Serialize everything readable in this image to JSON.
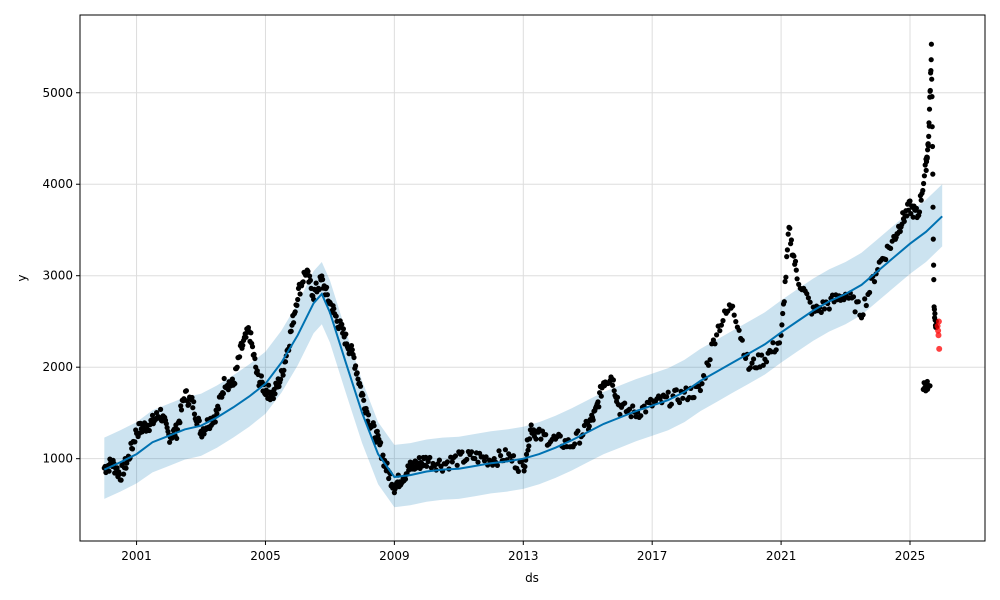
{
  "chart_data": {
    "type": "line",
    "title": "",
    "xlabel": "ds",
    "ylabel": "y",
    "xlim": [
      "1999-04-01",
      "2027-05-01"
    ],
    "ylim": [
      100,
      5850
    ],
    "grid": true,
    "x_ticks": [
      "2001",
      "2005",
      "2009",
      "2013",
      "2017",
      "2021",
      "2025"
    ],
    "y_ticks": [
      1000,
      2000,
      3000,
      4000,
      5000
    ],
    "colors": {
      "forecast_line": "#0072B2",
      "interval_fill": "#0072B2",
      "observed_points": "#000000",
      "test_points": "#ff0000",
      "grid": "#dddddd"
    },
    "series": [
      {
        "kind": "forecast",
        "x": [
          "2000-01-01",
          "2000-07-01",
          "2001-01-01",
          "2001-07-01",
          "2002-01-01",
          "2002-07-01",
          "2003-01-01",
          "2003-07-01",
          "2004-01-01",
          "2004-07-01",
          "2005-01-01",
          "2005-07-01",
          "2006-01-01",
          "2006-07-01",
          "2006-10-01",
          "2007-01-01",
          "2007-07-01",
          "2008-01-01",
          "2008-07-01",
          "2009-01-01",
          "2009-07-01",
          "2010-01-01",
          "2010-07-01",
          "2011-01-01",
          "2011-07-01",
          "2012-01-01",
          "2012-07-01",
          "2013-01-01",
          "2013-07-01",
          "2014-01-01",
          "2014-07-01",
          "2015-01-01",
          "2015-07-01",
          "2016-01-01",
          "2016-07-01",
          "2017-01-01",
          "2017-07-01",
          "2018-01-01",
          "2018-07-01",
          "2019-01-01",
          "2019-07-01",
          "2020-01-01",
          "2020-07-01",
          "2021-01-01",
          "2021-07-01",
          "2022-01-01",
          "2022-07-01",
          "2023-01-01",
          "2023-07-01",
          "2024-01-01",
          "2024-07-01",
          "2025-01-01",
          "2025-07-01",
          "2026-01-01"
        ],
        "yhat": [
          880,
          960,
          1050,
          1180,
          1250,
          1320,
          1360,
          1450,
          1560,
          1680,
          1820,
          2050,
          2350,
          2700,
          2800,
          2600,
          2050,
          1500,
          1050,
          800,
          820,
          860,
          880,
          890,
          920,
          950,
          970,
          1000,
          1050,
          1120,
          1200,
          1290,
          1380,
          1450,
          1520,
          1580,
          1640,
          1730,
          1850,
          1950,
          2050,
          2150,
          2250,
          2380,
          2500,
          2620,
          2720,
          2800,
          2900,
          3050,
          3200,
          3350,
          3480,
          3650
        ],
        "yhat_lower": [
          560,
          640,
          730,
          850,
          920,
          990,
          1030,
          1120,
          1230,
          1350,
          1490,
          1720,
          2020,
          2370,
          2470,
          2270,
          1720,
          1170,
          720,
          470,
          490,
          530,
          550,
          560,
          590,
          620,
          640,
          670,
          720,
          790,
          870,
          960,
          1050,
          1120,
          1190,
          1250,
          1310,
          1400,
          1520,
          1620,
          1720,
          1820,
          1920,
          2050,
          2170,
          2290,
          2390,
          2470,
          2570,
          2720,
          2870,
          3020,
          3150,
          3320
        ],
        "yhat_upper": [
          1230,
          1310,
          1400,
          1530,
          1600,
          1670,
          1710,
          1800,
          1910,
          2030,
          2170,
          2400,
          2700,
          3050,
          3150,
          2950,
          2400,
          1850,
          1400,
          1150,
          1170,
          1210,
          1230,
          1240,
          1270,
          1300,
          1320,
          1350,
          1400,
          1470,
          1550,
          1640,
          1730,
          1800,
          1870,
          1930,
          1990,
          2080,
          2200,
          2300,
          2400,
          2500,
          2600,
          2730,
          2850,
          2970,
          3070,
          3150,
          3250,
          3400,
          3550,
          3700,
          3830,
          4000
        ]
      },
      {
        "kind": "observed",
        "x": [
          "2000-01-01",
          "2000-04-01",
          "2000-07-01",
          "2000-10-01",
          "2001-01-01",
          "2001-04-01",
          "2001-07-01",
          "2001-10-01",
          "2002-01-01",
          "2002-04-01",
          "2002-07-01",
          "2002-10-01",
          "2003-01-01",
          "2003-04-01",
          "2003-07-01",
          "2003-10-01",
          "2004-01-01",
          "2004-04-01",
          "2004-07-01",
          "2004-10-01",
          "2005-01-01",
          "2005-04-01",
          "2005-07-01",
          "2005-10-01",
          "2006-01-01",
          "2006-04-01",
          "2006-07-01",
          "2006-10-01",
          "2007-01-01",
          "2007-04-01",
          "2007-07-01",
          "2007-10-01",
          "2008-01-01",
          "2008-04-01",
          "2008-07-01",
          "2008-10-01",
          "2009-01-01",
          "2009-04-01",
          "2009-07-01",
          "2009-10-01",
          "2010-01-01",
          "2010-07-01",
          "2011-01-01",
          "2011-07-01",
          "2012-01-01",
          "2012-07-01",
          "2013-01-01",
          "2013-04-01",
          "2013-07-01",
          "2014-01-01",
          "2014-07-01",
          "2015-01-01",
          "2015-04-01",
          "2015-07-01",
          "2015-10-01",
          "2016-01-01",
          "2016-07-01",
          "2017-01-01",
          "2017-07-01",
          "2018-01-01",
          "2018-07-01",
          "2019-01-01",
          "2019-07-01",
          "2020-01-01",
          "2020-07-01",
          "2021-01-01",
          "2021-04-01",
          "2021-07-01",
          "2022-01-01",
          "2022-07-01",
          "2023-01-01",
          "2023-07-01",
          "2024-01-01",
          "2024-07-01",
          "2024-10-01",
          "2025-01-01",
          "2025-04-01",
          "2025-07-01",
          "2025-08-01",
          "2025-09-01",
          "2025-10-01",
          "2025-11-01"
        ],
        "y": [
          900,
          950,
          820,
          1000,
          1300,
          1350,
          1400,
          1500,
          1250,
          1300,
          1700,
          1600,
          1300,
          1400,
          1500,
          1850,
          1800,
          2200,
          2400,
          1900,
          1750,
          1700,
          1900,
          2300,
          2800,
          3050,
          2800,
          2950,
          2700,
          2500,
          2300,
          2100,
          1700,
          1400,
          1200,
          900,
          700,
          800,
          900,
          950,
          980,
          940,
          1000,
          1020,
          990,
          1030,
          900,
          1350,
          1250,
          1200,
          1150,
          1350,
          1500,
          1850,
          1900,
          1550,
          1500,
          1600,
          1650,
          1700,
          1750,
          2400,
          2700,
          2000,
          2100,
          2300,
          3500,
          3000,
          2600,
          2700,
          2800,
          2600,
          3100,
          3400,
          3600,
          3750,
          3650,
          4200,
          4500,
          5500,
          2600,
          2400
        ],
        "note_late": {
          "x": [
            "2025-06-01",
            "2025-07-01"
          ],
          "y": [
            1800,
            1750
          ]
        }
      },
      {
        "kind": "test",
        "x": [
          "2025-11-10",
          "2025-11-15",
          "2025-11-20",
          "2025-11-25",
          "2025-11-28"
        ],
        "y": [
          2450,
          2400,
          2350,
          2500,
          2200
        ]
      }
    ]
  }
}
